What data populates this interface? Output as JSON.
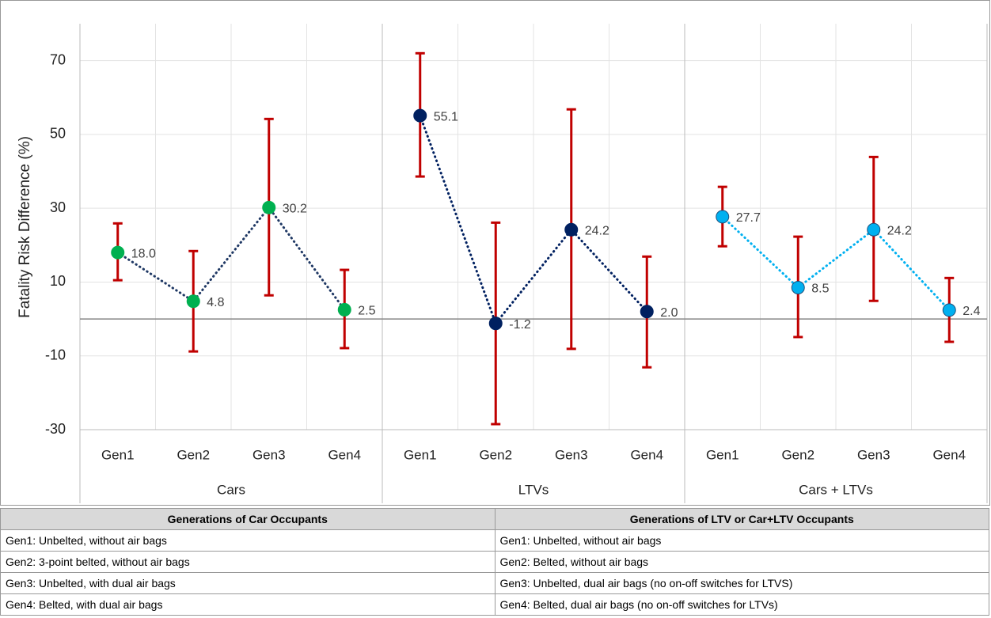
{
  "chart_data": {
    "type": "errorline",
    "y_label": "Fatality Risk Difference (%)",
    "ylim": [
      -30,
      80
    ],
    "yticks": [
      -30,
      -10,
      10,
      30,
      50,
      70
    ],
    "grid": true,
    "error_color": "#c00000",
    "series": [
      {
        "name": "Cars",
        "color": "#00b050",
        "line_color": "#1f3864",
        "categories": [
          "Gen1",
          "Gen2",
          "Gen3",
          "Gen4"
        ],
        "values": [
          18.0,
          4.8,
          30.2,
          2.5
        ],
        "value_labels": [
          "18.0",
          "4.8",
          "30.2",
          "2.5"
        ],
        "low": [
          10.5,
          -8.8,
          6.4,
          -7.9
        ],
        "high": [
          25.9,
          18.4,
          54.2,
          13.3
        ]
      },
      {
        "name": "LTVs",
        "color": "#002060",
        "line_color": "#002060",
        "categories": [
          "Gen1",
          "Gen2",
          "Gen3",
          "Gen4"
        ],
        "values": [
          55.1,
          -1.2,
          24.2,
          2.0
        ],
        "value_labels": [
          "55.1",
          "-1.2",
          "24.2",
          "2.0"
        ],
        "low": [
          38.6,
          -28.5,
          -8.1,
          -13.1
        ],
        "high": [
          72.0,
          26.1,
          56.8,
          16.9
        ]
      },
      {
        "name": "Cars + LTVs",
        "color": "#00b0f0",
        "line_color": "#00b0f0",
        "categories": [
          "Gen1",
          "Gen2",
          "Gen3",
          "Gen4"
        ],
        "values": [
          27.7,
          8.5,
          24.2,
          2.4
        ],
        "value_labels": [
          "27.7",
          "8.5",
          "24.2",
          "2.4"
        ],
        "low": [
          19.7,
          -4.9,
          4.9,
          -6.2
        ],
        "high": [
          35.8,
          22.3,
          43.9,
          11.1
        ]
      }
    ]
  },
  "table": {
    "headers": [
      "Generations of Car Occupants",
      "Generations of LTV or Car+LTV Occupants"
    ],
    "rows": [
      [
        "Gen1: Unbelted, without air bags",
        "Gen1: Unbelted, without air bags"
      ],
      [
        "Gen2: 3-point belted, without air bags",
        "Gen2: Belted, without air bags"
      ],
      [
        "Gen3: Unbelted, with dual air bags",
        "Gen3: Unbelted, dual air bags (no on-off switches for LTVS)"
      ],
      [
        "Gen4: Belted, with dual air bags",
        "Gen4: Belted, dual air bags (no on-off switches for LTVs)"
      ]
    ]
  }
}
